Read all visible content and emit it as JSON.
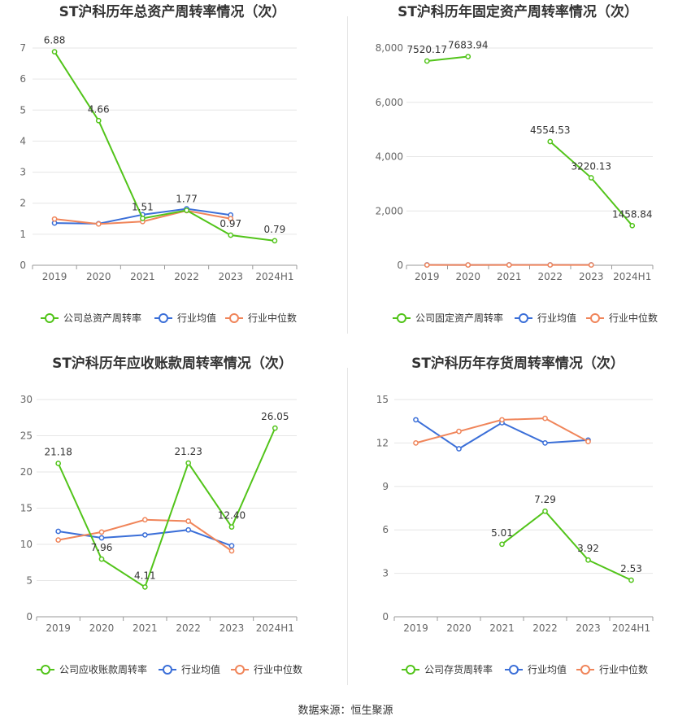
{
  "colors": {
    "company": "#52c41a",
    "avg": "#3b6fd8",
    "median": "#f0855a",
    "grid": "#e6e6e6",
    "axis": "#999999"
  },
  "source": "数据来源：恒生聚源",
  "chart_data": [
    {
      "type": "line",
      "title": "ST沪科历年总资产周转率情况（次）",
      "categories": [
        "2019",
        "2020",
        "2021",
        "2022",
        "2023",
        "2024H1"
      ],
      "ylim": [
        0,
        7
      ],
      "yticks": [
        0,
        1,
        2,
        3,
        4,
        5,
        6,
        7
      ],
      "ytick_labels": [
        "0",
        "1",
        "2",
        "3",
        "4",
        "5",
        "6",
        "7"
      ],
      "series": [
        {
          "name": "公司总资产周转率",
          "values": [
            6.88,
            4.66,
            1.51,
            1.77,
            0.97,
            0.79
          ],
          "labels": [
            "6.88",
            "4.66",
            "1.51",
            "1.77",
            "0.97",
            "0.79"
          ]
        },
        {
          "name": "行业均值",
          "values": [
            1.36,
            1.34,
            1.63,
            1.82,
            1.62,
            null
          ]
        },
        {
          "name": "行业中位数",
          "values": [
            1.49,
            1.33,
            1.41,
            1.76,
            1.5,
            null
          ]
        }
      ]
    },
    {
      "type": "line",
      "title": "ST沪科历年固定资产周转率情况（次）",
      "categories": [
        "2019",
        "2020",
        "2021",
        "2022",
        "2023",
        "2024H1"
      ],
      "ylim": [
        0,
        8000
      ],
      "yticks": [
        0,
        2000,
        4000,
        6000,
        8000
      ],
      "ytick_labels": [
        "0",
        "2,000",
        "4,000",
        "6,000",
        "8,000"
      ],
      "series": [
        {
          "name": "公司固定资产周转率",
          "values": [
            7520.17,
            7683.94,
            null,
            4554.53,
            3220.13,
            1458.84
          ],
          "labels": [
            "7520.17",
            "7683.94",
            "",
            "4554.53",
            "3220.13",
            "1458.84"
          ]
        },
        {
          "name": "行业均值",
          "values": [
            14,
            13,
            14,
            16,
            15,
            null
          ]
        },
        {
          "name": "行业中位数",
          "values": [
            10,
            11,
            12,
            13,
            12,
            null
          ]
        }
      ]
    },
    {
      "type": "line",
      "title": "ST沪科历年应收账款周转率情况（次）",
      "categories": [
        "2019",
        "2020",
        "2021",
        "2022",
        "2023",
        "2024H1"
      ],
      "ylim": [
        0,
        30
      ],
      "yticks": [
        0,
        5,
        10,
        15,
        20,
        25,
        30
      ],
      "ytick_labels": [
        "0",
        "5",
        "10",
        "15",
        "20",
        "25",
        "30"
      ],
      "series": [
        {
          "name": "公司应收账款周转率",
          "values": [
            21.18,
            7.96,
            4.11,
            21.23,
            12.4,
            26.05
          ],
          "labels": [
            "21.18",
            "7.96",
            "4.11",
            "21.23",
            "12.40",
            "26.05"
          ]
        },
        {
          "name": "行业均值",
          "values": [
            11.8,
            10.9,
            11.3,
            12.0,
            9.8,
            null
          ]
        },
        {
          "name": "行业中位数",
          "values": [
            10.6,
            11.7,
            13.4,
            13.2,
            9.1,
            null
          ]
        }
      ]
    },
    {
      "type": "line",
      "title": "ST沪科历年存货周转率情况（次）",
      "categories": [
        "2019",
        "2020",
        "2021",
        "2022",
        "2023",
        "2024H1"
      ],
      "ylim": [
        0,
        15
      ],
      "yticks": [
        0,
        3,
        6,
        9,
        12,
        15
      ],
      "ytick_labels": [
        "0",
        "3",
        "6",
        "9",
        "12",
        "15"
      ],
      "series": [
        {
          "name": "公司存货周转率",
          "values": [
            null,
            null,
            5.01,
            7.29,
            3.92,
            2.53
          ],
          "labels": [
            "",
            "",
            "5.01",
            "7.29",
            "3.92",
            "2.53"
          ]
        },
        {
          "name": "行业均值",
          "values": [
            13.6,
            11.6,
            13.4,
            12.0,
            12.2,
            null
          ]
        },
        {
          "name": "行业中位数",
          "values": [
            12.0,
            12.8,
            13.6,
            13.7,
            12.1,
            null
          ]
        }
      ]
    }
  ]
}
